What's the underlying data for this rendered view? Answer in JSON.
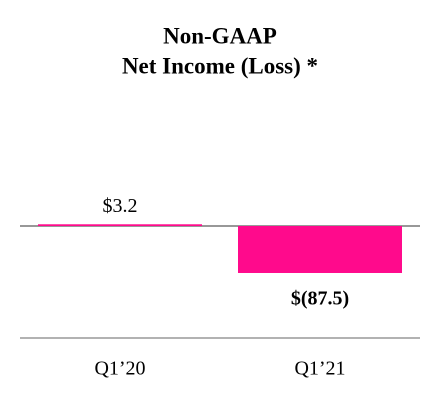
{
  "chart_data": {
    "type": "bar",
    "title": [
      "Non-GAAP",
      "Net Income (Loss) *"
    ],
    "categories": [
      "Q1’20",
      "Q1’21"
    ],
    "values": [
      3.2,
      -87.5
    ],
    "value_labels": [
      "$3.2",
      "$(87.5)"
    ],
    "color": "#ff0a8c",
    "ylim": [
      -200,
      100
    ]
  }
}
